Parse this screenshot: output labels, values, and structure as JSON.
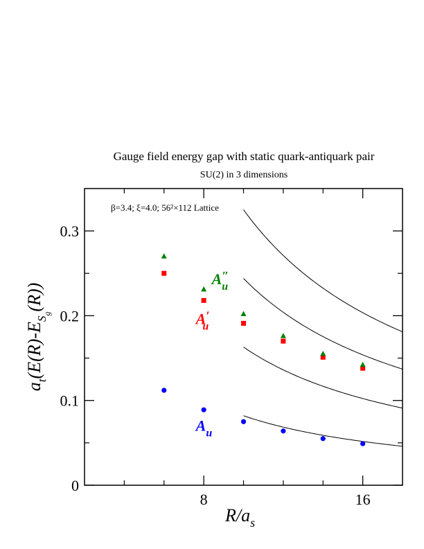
{
  "chart_data": {
    "type": "scatter",
    "title": "Gauge field energy gap with static quark-antiquark pair",
    "subtitle": "SU(2) in 3 dimensions",
    "annotation": "β=3.4; ξ=4.0; 56²×112 Lattice",
    "xlabel": {
      "main": "R/a",
      "sub": "s"
    },
    "ylabel": {
      "lead": "a",
      "lead_sub": "t",
      "mid": "(E(R)-E",
      "mid_sub": "S",
      "mid_subsub": "g",
      "tail": "(R))"
    },
    "xlim": [
      2,
      18
    ],
    "ylim": [
      0,
      0.35
    ],
    "x_ticks": [
      8,
      16
    ],
    "x_tick_labels": [
      "8",
      "16"
    ],
    "x_minor_ticks": [
      4,
      6,
      10,
      12,
      14
    ],
    "y_ticks": [
      0,
      0.1,
      0.2,
      0.3
    ],
    "y_tick_labels": [
      "0",
      "0.1",
      "0.2",
      "0.3"
    ],
    "y_minor_ticks": [
      0.05,
      0.15,
      0.25
    ],
    "series": [
      {
        "name": "A_u",
        "label": {
          "base": "A",
          "sub": "u",
          "prime": ""
        },
        "color": "#0000ff",
        "marker": "circle",
        "points": [
          [
            6,
            0.112
          ],
          [
            8,
            0.089
          ],
          [
            10,
            0.075
          ],
          [
            12,
            0.064
          ],
          [
            14,
            0.055
          ],
          [
            16,
            0.049
          ]
        ],
        "label_pos": [
          7.6,
          0.064
        ]
      },
      {
        "name": "A'_u",
        "label": {
          "base": "A",
          "sub": "u",
          "prime": "′"
        },
        "color": "#ff0000",
        "marker": "square",
        "points": [
          [
            6,
            0.25
          ],
          [
            8,
            0.218
          ],
          [
            10,
            0.191
          ],
          [
            12,
            0.17
          ],
          [
            14,
            0.151
          ],
          [
            16,
            0.138
          ]
        ],
        "label_pos": [
          7.6,
          0.19
        ]
      },
      {
        "name": "A''_u",
        "label": {
          "base": "A",
          "sub": "u",
          "prime": "″"
        },
        "color": "#008000",
        "marker": "triangle",
        "points": [
          [
            6,
            0.27
          ],
          [
            8,
            0.231
          ],
          [
            10,
            0.202
          ],
          [
            12,
            0.176
          ],
          [
            14,
            0.155
          ],
          [
            16,
            0.142
          ]
        ],
        "label_pos": [
          8.4,
          0.237
        ]
      }
    ],
    "curves": [
      {
        "x0": 10,
        "x1": 18,
        "y_start": 0.082,
        "y_end": 0.046
      },
      {
        "x0": 10,
        "x1": 18,
        "y_start": 0.163,
        "y_end": 0.091
      },
      {
        "x0": 10,
        "x1": 18,
        "y_start": 0.244,
        "y_end": 0.137
      },
      {
        "x0": 10,
        "x1": 18,
        "y_start": 0.325,
        "y_end": 0.181
      }
    ]
  }
}
